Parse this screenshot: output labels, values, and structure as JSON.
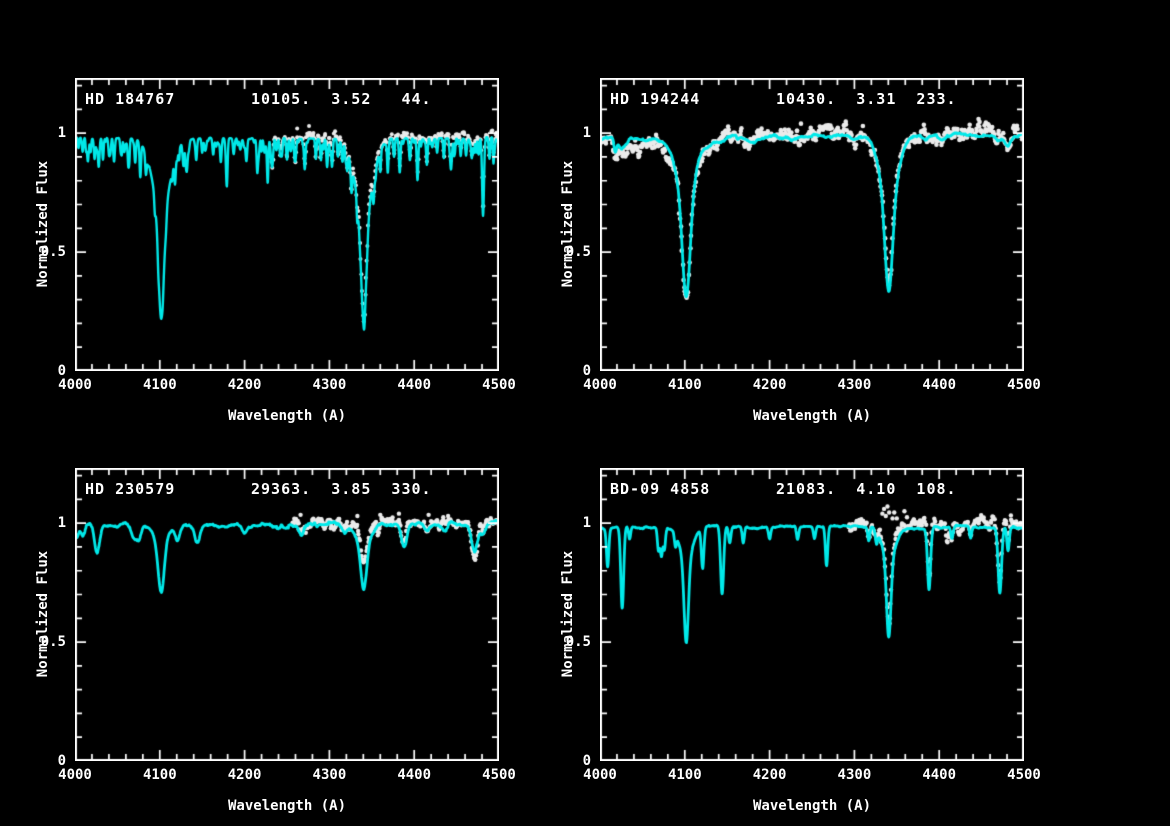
{
  "figure": {
    "background": "#000000",
    "frame_color": "#ffffff",
    "text_color": "#ffffff",
    "model_color": "#00e9e9",
    "obs_color": "#ebebeb"
  },
  "chart_data": [
    {
      "type": "line+scatter",
      "title": "HD 184767",
      "params_label": "10105.  3.52   44.",
      "teff": 10105,
      "logg": 3.52,
      "vsini": 44,
      "xlabel": "Wavelength (A)",
      "ylabel": "Normalized Flux",
      "xlim": [
        4000,
        4500
      ],
      "ylim": [
        0,
        1.232
      ],
      "xticks": [
        4000,
        4100,
        4200,
        4300,
        4400,
        4500
      ],
      "xtick_labels": [
        "4000",
        "4100",
        "4200",
        "4300",
        "4400",
        "4500"
      ],
      "yticks": [
        0,
        0.5,
        1
      ],
      "ytick_labels": [
        "0",
        "0.5",
        "1"
      ],
      "minor_tick_x": 20,
      "minor_tick_y": 0.1,
      "legend": {
        "model": "synthetic spectrum (cyan line)",
        "obs": "observed spectrum (white dots)"
      },
      "model": {
        "color": "#00e9e9",
        "line_width": 2.4,
        "continuum": [
          [
            4000,
            0.978
          ],
          [
            4500,
            0.978
          ]
        ],
        "wiggle": {
          "amp": 0.002,
          "alpha": 0.9,
          "seed": 11
        },
        "forest": {
          "seed": 5,
          "step": 2.6,
          "prob": 0.5,
          "max_depth": 0.06,
          "sigma_min": 0.5,
          "sigma_max": 1.0
        },
        "lines": [
          [
            4101.7,
            0.46,
            3.2
          ],
          [
            4101.7,
            0.3,
            10.5
          ],
          [
            4340.5,
            0.46,
            3.2
          ],
          [
            4340.5,
            0.3,
            10.5
          ],
          [
            4009,
            0.06,
            0.9
          ],
          [
            4015,
            0.08,
            0.9
          ],
          [
            4023,
            0.07,
            0.8
          ],
          [
            4028,
            0.12,
            0.9
          ],
          [
            4033,
            0.09,
            0.8
          ],
          [
            4040,
            0.06,
            0.8
          ],
          [
            4046,
            0.09,
            0.9
          ],
          [
            4054,
            0.06,
            0.8
          ],
          [
            4063,
            0.12,
            0.9
          ],
          [
            4071,
            0.1,
            0.9
          ],
          [
            4077,
            0.13,
            0.9
          ],
          [
            4084,
            0.06,
            0.8
          ],
          [
            4118,
            0.07,
            0.9
          ],
          [
            4128,
            0.1,
            0.9
          ],
          [
            4132,
            0.12,
            0.9
          ],
          [
            4143,
            0.09,
            0.9
          ],
          [
            4150,
            0.06,
            0.8
          ],
          [
            4163,
            0.07,
            0.9
          ],
          [
            4172,
            0.1,
            0.9
          ],
          [
            4179,
            0.12,
            0.9
          ],
          [
            4187,
            0.06,
            0.8
          ],
          [
            4202,
            0.09,
            0.9
          ],
          [
            4215,
            0.12,
            0.9
          ],
          [
            4227,
            0.14,
            0.9
          ],
          [
            4233,
            0.1,
            0.9
          ],
          [
            4242,
            0.07,
            0.9
          ],
          [
            4250,
            0.09,
            0.9
          ],
          [
            4260,
            0.09,
            0.9
          ],
          [
            4271,
            0.12,
            0.9
          ],
          [
            4284,
            0.07,
            0.8
          ],
          [
            4290,
            0.09,
            0.9
          ],
          [
            4297,
            0.07,
            0.8
          ],
          [
            4303,
            0.1,
            0.9
          ],
          [
            4310,
            0.07,
            0.8
          ],
          [
            4315,
            0.06,
            0.8
          ],
          [
            4321,
            0.08,
            0.8
          ],
          [
            4326,
            0.11,
            0.9
          ],
          [
            4352,
            0.08,
            0.9
          ],
          [
            4360,
            0.06,
            0.8
          ],
          [
            4369,
            0.06,
            0.8
          ],
          [
            4376,
            0.07,
            0.8
          ],
          [
            4383,
            0.14,
            0.9
          ],
          [
            4395,
            0.09,
            0.9
          ],
          [
            4404,
            0.13,
            0.9
          ],
          [
            4415,
            0.1,
            0.9
          ],
          [
            4427,
            0.06,
            0.8
          ],
          [
            4435,
            0.07,
            0.8
          ],
          [
            4443,
            0.09,
            0.9
          ],
          [
            4455,
            0.06,
            0.8
          ],
          [
            4461,
            0.06,
            0.8
          ],
          [
            4468,
            0.08,
            0.8
          ],
          [
            4476,
            0.07,
            0.8
          ],
          [
            4481.2,
            0.33,
            1.1
          ],
          [
            4489,
            0.06,
            0.8
          ],
          [
            4494,
            0.07,
            0.8
          ]
        ]
      },
      "obs": {
        "color": "#ebebeb",
        "range": [
          4232,
          4500
        ],
        "continuum": [
          [
            4232,
            0.985
          ],
          [
            4340,
            0.99
          ],
          [
            4500,
            0.992
          ]
        ],
        "line_scale": 1.0,
        "forest_scale": 0.6,
        "noise": 0.009,
        "spacing": 0.8,
        "dot_radius": 2.0,
        "seed": 21,
        "extra_lines": [],
        "outliers": [
          [
            4262,
            1.02
          ],
          [
            4276,
            1.03
          ]
        ]
      }
    },
    {
      "type": "line+scatter",
      "title": "HD 194244",
      "params_label": "10430.  3.31  233.",
      "teff": 10430,
      "logg": 3.31,
      "vsini": 233,
      "xlabel": "Wavelength (A)",
      "ylabel": "Normalized Flux",
      "xlim": [
        4000,
        4500
      ],
      "ylim": [
        0,
        1.232
      ],
      "xticks": [
        4000,
        4100,
        4200,
        4300,
        4400,
        4500
      ],
      "xtick_labels": [
        "4000",
        "4100",
        "4200",
        "4300",
        "4400",
        "4500"
      ],
      "yticks": [
        0,
        0.5,
        1
      ],
      "ytick_labels": [
        "0",
        "0.5",
        "1"
      ],
      "minor_tick_x": 20,
      "minor_tick_y": 0.1,
      "legend": {
        "model": "synthetic spectrum (cyan line)",
        "obs": "observed spectrum (white dots)"
      },
      "model": {
        "color": "#00e9e9",
        "line_width": 2.8,
        "continuum": [
          [
            4000,
            0.975
          ],
          [
            4100,
            0.978
          ],
          [
            4200,
            0.985
          ],
          [
            4300,
            0.988
          ],
          [
            4400,
            0.992
          ],
          [
            4500,
            0.998
          ]
        ],
        "wiggle": {
          "amp": 0.005,
          "alpha": 0.9,
          "seed": 12
        },
        "lines": [
          [
            4101.7,
            0.42,
            4.5
          ],
          [
            4101.7,
            0.24,
            11
          ],
          [
            4340.5,
            0.42,
            4.5
          ],
          [
            4340.5,
            0.24,
            11
          ],
          [
            4018,
            0.05,
            1.5
          ],
          [
            4026,
            0.035,
            4
          ],
          [
            4131,
            0.03,
            5
          ],
          [
            4144,
            0.02,
            4
          ],
          [
            4179,
            0.02,
            4
          ],
          [
            4227,
            0.02,
            4
          ],
          [
            4300,
            0.015,
            5
          ],
          [
            4385,
            0.02,
            5
          ],
          [
            4404,
            0.02,
            5
          ],
          [
            4471,
            0.025,
            4
          ],
          [
            4481,
            0.045,
            3.5
          ]
        ]
      },
      "obs": {
        "color": "#ebebeb",
        "range": [
          4000,
          4500
        ],
        "continuum": [
          [
            4000,
            0.95
          ],
          [
            4060,
            0.952
          ],
          [
            4120,
            0.968
          ],
          [
            4180,
            0.99
          ],
          [
            4240,
            0.998
          ],
          [
            4330,
            0.998
          ],
          [
            4420,
            0.999
          ],
          [
            4500,
            1.0
          ]
        ],
        "line_scale": 0.98,
        "forest_scale": 0,
        "noise": 0.02,
        "spacing": 0.8,
        "dot_radius": 2.3,
        "seed": 33,
        "extra_lines": [
          [
            4481,
            0.04,
            3
          ]
        ],
        "outliers": [
          [
            4237,
            1.04
          ],
          [
            4310,
            1.03
          ],
          [
            4455,
            1.045
          ]
        ]
      }
    },
    {
      "type": "line+scatter",
      "title": "HD 230579",
      "params_label": "29363.  3.85  330.",
      "teff": 29363,
      "logg": 3.85,
      "vsini": 330,
      "xlabel": "Wavelength (A)",
      "ylabel": "Normalized Flux",
      "xlim": [
        4000,
        4500
      ],
      "ylim": [
        0,
        1.232
      ],
      "xticks": [
        4000,
        4100,
        4200,
        4300,
        4400,
        4500
      ],
      "xtick_labels": [
        "4000",
        "4100",
        "4200",
        "4300",
        "4400",
        "4500"
      ],
      "yticks": [
        0,
        0.5,
        1
      ],
      "ytick_labels": [
        "0",
        "0.5",
        "1"
      ],
      "minor_tick_x": 20,
      "minor_tick_y": 0.1,
      "legend": {
        "model": "synthetic spectrum (cyan line)",
        "obs": "observed spectrum (white dots)"
      },
      "model": {
        "color": "#00e9e9",
        "line_width": 2.8,
        "continuum": [
          [
            4000,
            0.995
          ],
          [
            4500,
            0.995
          ]
        ],
        "wiggle": {
          "amp": 0.006,
          "alpha": 0.88,
          "seed": 13
        },
        "lines": [
          [
            4002,
            0.05,
            2.0
          ],
          [
            4009,
            0.05,
            2.5
          ],
          [
            4026,
            0.12,
            3.0
          ],
          [
            4070,
            0.06,
            3.5
          ],
          [
            4076,
            0.04,
            2.5
          ],
          [
            4101.7,
            0.22,
            3.5
          ],
          [
            4101.7,
            0.07,
            9
          ],
          [
            4121,
            0.06,
            3
          ],
          [
            4144,
            0.08,
            3
          ],
          [
            4200,
            0.035,
            3
          ],
          [
            4267,
            0.045,
            3
          ],
          [
            4317,
            0.03,
            3
          ],
          [
            4340.5,
            0.2,
            3.5
          ],
          [
            4340.5,
            0.07,
            9
          ],
          [
            4388,
            0.09,
            3
          ],
          [
            4415,
            0.03,
            3
          ],
          [
            4437,
            0.025,
            3
          ],
          [
            4471,
            0.11,
            3.5
          ],
          [
            4481,
            0.04,
            2.5
          ]
        ]
      },
      "obs": {
        "color": "#ebebeb",
        "range": [
          4257,
          4500
        ],
        "continuum": [
          [
            4257,
            1.0
          ],
          [
            4300,
            1.002
          ],
          [
            4340,
            1.005
          ],
          [
            4400,
            1.007
          ],
          [
            4460,
            1.007
          ],
          [
            4500,
            1.0
          ]
        ],
        "line_scale": 0.62,
        "forest_scale": 0,
        "noise": 0.012,
        "spacing": 0.8,
        "dot_radius": 2.2,
        "seed": 44,
        "extra_lines": [
          [
            4471,
            0.07,
            3.0
          ],
          [
            4388,
            0.03,
            2.5
          ]
        ],
        "outliers": [
          [
            4266,
            1.035
          ],
          [
            4333,
            1.03
          ],
          [
            4360,
            1.035
          ],
          [
            4382,
            1.04
          ],
          [
            4417,
            1.035
          ],
          [
            4440,
            1.03
          ]
        ]
      }
    },
    {
      "type": "line+scatter",
      "title": "BD-09 4858",
      "params_label": "21083.  4.10  108.",
      "teff": 21083,
      "logg": 4.1,
      "vsini": 108,
      "xlabel": "Wavelength (A)",
      "ylabel": "Normalized Flux",
      "xlim": [
        4000,
        4500
      ],
      "ylim": [
        0,
        1.232
      ],
      "xticks": [
        4000,
        4100,
        4200,
        4300,
        4400,
        4500
      ],
      "xtick_labels": [
        "4000",
        "4100",
        "4200",
        "4300",
        "4400",
        "4500"
      ],
      "yticks": [
        0,
        0.5,
        1
      ],
      "ytick_labels": [
        "0",
        "0.5",
        "1"
      ],
      "minor_tick_x": 20,
      "minor_tick_y": 0.1,
      "legend": {
        "model": "synthetic spectrum (cyan line)",
        "obs": "observed spectrum (white dots)"
      },
      "model": {
        "color": "#00e9e9",
        "line_width": 2.8,
        "continuum": [
          [
            4000,
            0.985
          ],
          [
            4500,
            0.985
          ]
        ],
        "wiggle": {
          "amp": 0.0035,
          "alpha": 0.9,
          "seed": 14
        },
        "lines": [
          [
            4009,
            0.16,
            1.4
          ],
          [
            4026.2,
            0.34,
            1.7
          ],
          [
            4035,
            0.05,
            1.2
          ],
          [
            4069,
            0.1,
            1.3
          ],
          [
            4072.5,
            0.12,
            1.3
          ],
          [
            4076,
            0.09,
            1.2
          ],
          [
            4089,
            0.05,
            1.2
          ],
          [
            4101.7,
            0.36,
            2.6
          ],
          [
            4101.7,
            0.13,
            8
          ],
          [
            4121,
            0.17,
            1.5
          ],
          [
            4144,
            0.29,
            1.8
          ],
          [
            4153,
            0.07,
            1.3
          ],
          [
            4169,
            0.07,
            1.3
          ],
          [
            4200,
            0.05,
            1.4
          ],
          [
            4233,
            0.05,
            1.3
          ],
          [
            4253,
            0.05,
            1.3
          ],
          [
            4267.2,
            0.17,
            1.4
          ],
          [
            4317,
            0.06,
            1.3
          ],
          [
            4326,
            0.05,
            1.3
          ],
          [
            4340.5,
            0.34,
            2.6
          ],
          [
            4340.5,
            0.13,
            8
          ],
          [
            4388,
            0.26,
            1.8
          ],
          [
            4415,
            0.05,
            1.3
          ],
          [
            4437,
            0.05,
            1.3
          ],
          [
            4471.5,
            0.28,
            2.0
          ],
          [
            4481.2,
            0.1,
            1.4
          ]
        ]
      },
      "obs": {
        "color": "#ebebeb",
        "range": [
          4293,
          4500
        ],
        "continuum": [
          [
            4293,
            0.985
          ],
          [
            4320,
            0.99
          ],
          [
            4345,
            1.005
          ],
          [
            4380,
            1.01
          ],
          [
            4420,
            0.998
          ],
          [
            4500,
            0.998
          ]
        ],
        "line_scale": 0.9,
        "forest_scale": 0,
        "noise": 0.014,
        "spacing": 0.8,
        "dot_radius": 2.2,
        "seed": 55,
        "extra_lines": [
          [
            4410,
            0.06,
            2.0
          ],
          [
            4425,
            0.04,
            2.0
          ]
        ],
        "outliers": [
          [
            4333,
            1.04
          ],
          [
            4335,
            1.06
          ],
          [
            4337,
            1.03
          ],
          [
            4339,
            1.07
          ],
          [
            4341,
            1.045
          ],
          [
            4345,
            1.02
          ],
          [
            4347,
            1.045
          ],
          [
            4350,
            1.02
          ],
          [
            4359,
            1.05
          ],
          [
            4362,
            1.025
          ],
          [
            4448,
            1.02
          ]
        ]
      }
    }
  ]
}
